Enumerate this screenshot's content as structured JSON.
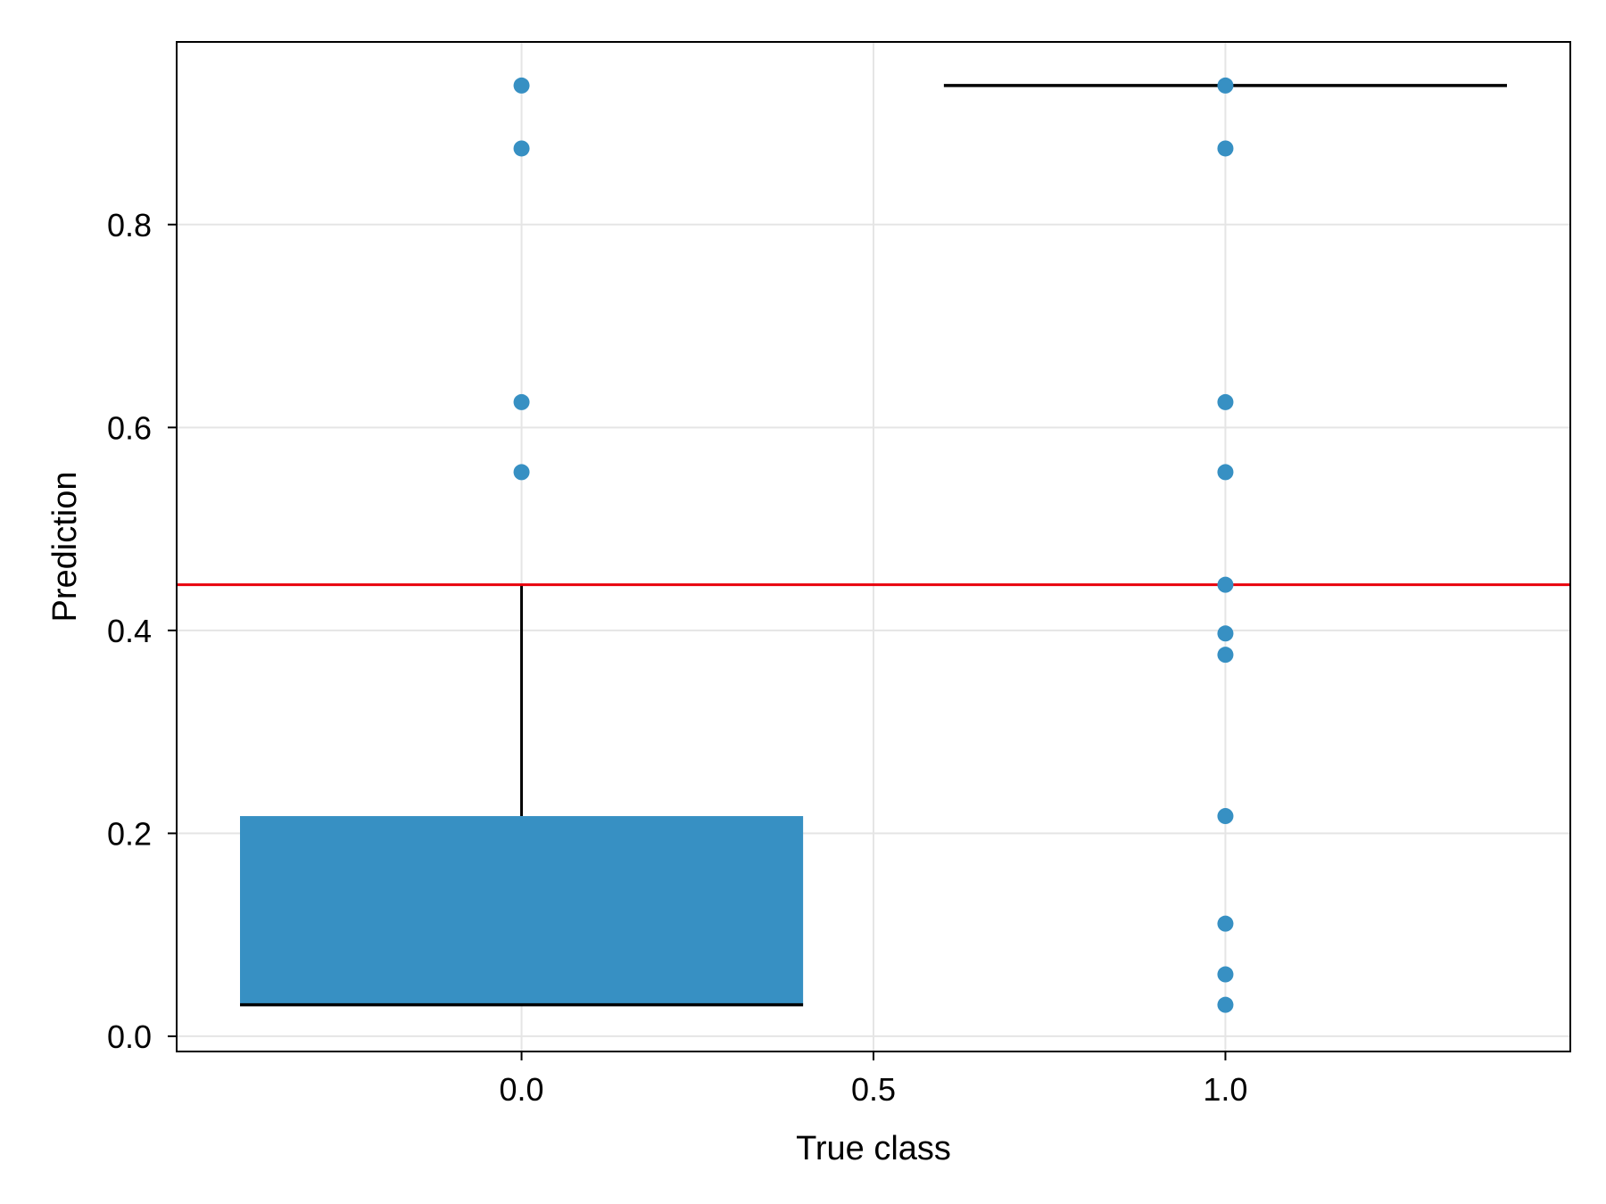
{
  "chart_data": {
    "type": "box",
    "xlabel": "True class",
    "ylabel": "Prediction",
    "xlim": [
      -0.49,
      1.49
    ],
    "ylim": [
      -0.015,
      0.98
    ],
    "x_ticks": [
      0.0,
      0.5,
      1.0
    ],
    "x_tick_labels": [
      "0.0",
      "0.5",
      "1.0"
    ],
    "y_ticks": [
      0.0,
      0.2,
      0.4,
      0.6,
      0.8
    ],
    "y_tick_labels": [
      "0.0",
      "0.2",
      "0.4",
      "0.6",
      "0.8"
    ],
    "grid": true,
    "colors": {
      "series": "#3790c3",
      "threshold": "#e8000b",
      "box_lines": "#000000",
      "grid": "#e5e5e5",
      "frame": "#000000"
    },
    "threshold": 0.445,
    "boxes": [
      {
        "x": 0.0,
        "width": 0.8,
        "q1": 0.031,
        "median": 0.031,
        "q3": 0.217,
        "whisker_low": 0.031,
        "whisker_high": 0.445
      },
      {
        "x": 1.0,
        "width": 0.8,
        "q1": 0.937,
        "median": 0.937,
        "q3": 0.937,
        "whisker_low": 0.937,
        "whisker_high": 0.937
      }
    ],
    "points": [
      {
        "x": 0.0,
        "y": 0.937
      },
      {
        "x": 0.0,
        "y": 0.875
      },
      {
        "x": 0.0,
        "y": 0.625
      },
      {
        "x": 0.0,
        "y": 0.556
      },
      {
        "x": 1.0,
        "y": 0.937
      },
      {
        "x": 1.0,
        "y": 0.875
      },
      {
        "x": 1.0,
        "y": 0.625
      },
      {
        "x": 1.0,
        "y": 0.556
      },
      {
        "x": 1.0,
        "y": 0.445
      },
      {
        "x": 1.0,
        "y": 0.397
      },
      {
        "x": 1.0,
        "y": 0.376
      },
      {
        "x": 1.0,
        "y": 0.217
      },
      {
        "x": 1.0,
        "y": 0.111
      },
      {
        "x": 1.0,
        "y": 0.061
      },
      {
        "x": 1.0,
        "y": 0.031
      }
    ]
  }
}
